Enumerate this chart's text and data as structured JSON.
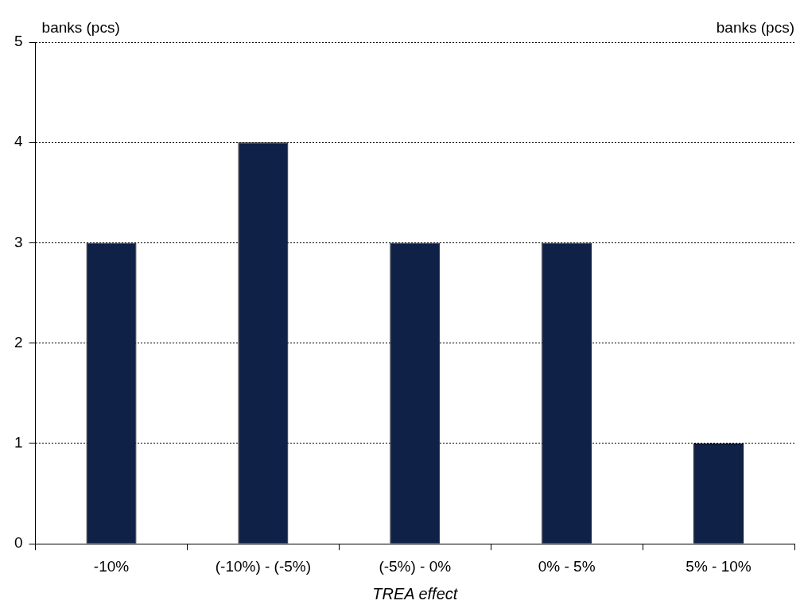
{
  "chart_data": {
    "type": "bar",
    "xlabel": "TREA effect",
    "ylabel": "banks (pcs)",
    "y2label": "banks (pcs)",
    "categories": [
      "-10%",
      "(-10%) - (-5%)",
      "(-5%) - 0%",
      "0% - 5%",
      "5% - 10%"
    ],
    "values": [
      3,
      4,
      3,
      3,
      1
    ],
    "color": "#0f2147",
    "ylim": [
      0,
      5
    ],
    "yticks": [
      0,
      1,
      2,
      3,
      4,
      5
    ],
    "grid": "y",
    "legend": false
  }
}
